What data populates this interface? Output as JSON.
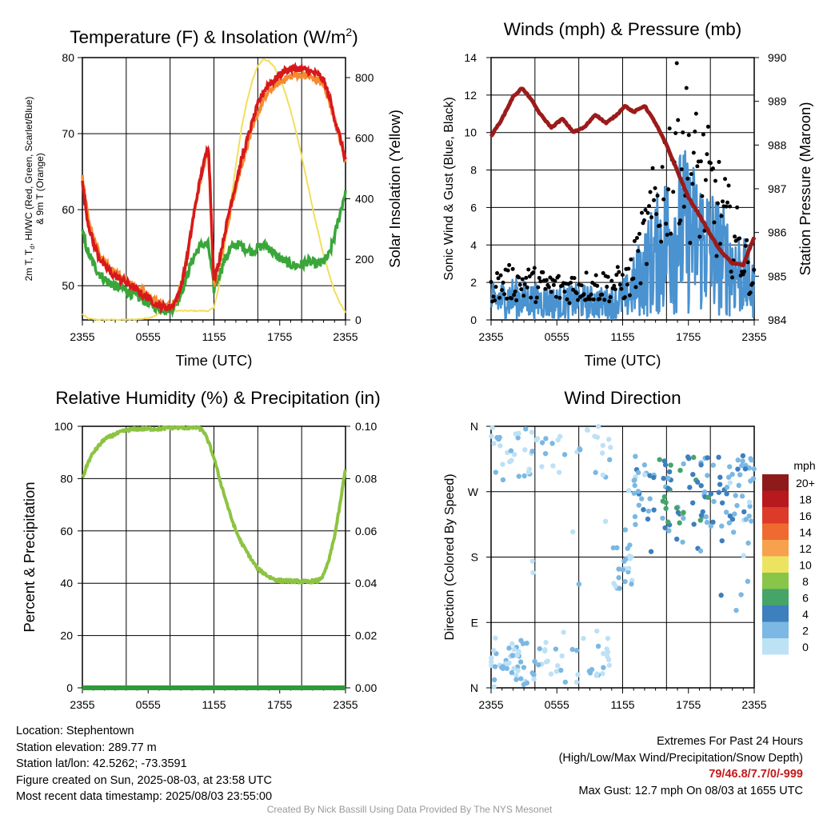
{
  "colors": {
    "temp_2m": "#d7191c",
    "dewpoint": "#3aa63a",
    "heat_index_wc": "#d7191c",
    "temp_9m": "#f58b30",
    "insolation": "#f2de5c",
    "wind": "#4a92d0",
    "gust": "#000000",
    "pressure": "#9b1b1b",
    "rh": "#8cc441",
    "precip": "#2e9a3a"
  },
  "x_ticks": [
    "2355",
    "0555",
    "1155",
    "1755",
    "2355"
  ],
  "chart_data": [
    {
      "type": "line",
      "title": "Temperature (F) & Insolation (W/m",
      "title_sup": "2",
      "title_close": ")",
      "xlabel": "Time (UTC)",
      "ylabel_lines": [
        "2m T, T",
        "d",
        ", HI/WC (Red, Green, Scarlet/Blue)",
        "& 9m T (Orange)"
      ],
      "ylabel2": "Solar Insolation (Yellow)",
      "ylim": [
        45.5,
        80
      ],
      "y_ticks": [
        50,
        60,
        70,
        80
      ],
      "y2lim": [
        0,
        866
      ],
      "y2_ticks": [
        0,
        200,
        400,
        600,
        800
      ],
      "x": [
        0,
        1,
        2,
        3,
        4,
        5,
        6,
        7,
        8,
        9,
        10,
        11,
        12,
        13,
        14,
        15,
        16,
        17,
        18,
        19,
        20,
        21,
        22,
        23,
        24
      ],
      "x_unit": "hours after 2355 UTC",
      "series": [
        {
          "name": "2m T",
          "values": [
            63.5,
            58.5,
            55.8,
            54.0,
            52.8,
            52.0,
            51.3,
            51.0,
            50.6,
            50.1,
            49.6,
            49.1,
            48.6,
            48.1,
            47.6,
            47.3,
            47.1,
            47.3,
            48.3,
            50.5,
            54.0,
            58.5,
            62.5,
            65.8,
            68.5
          ]
        },
        {
          "name": "Td",
          "values": [
            57.0,
            54.5,
            53.0,
            51.8,
            51.0,
            50.5,
            50.0,
            49.8,
            49.5,
            49.1,
            48.7,
            48.3,
            48.0,
            47.6,
            47.2,
            47.0,
            46.9,
            47.0,
            47.8,
            49.5,
            51.5,
            53.5,
            54.8,
            55.5,
            55.3
          ]
        },
        {
          "name": "9m T",
          "values": [
            64.2,
            59.3,
            56.5,
            54.6,
            53.3,
            52.4,
            51.7,
            51.4,
            51.0,
            50.5,
            50.0,
            49.5,
            49.0,
            48.5,
            48.0,
            47.6,
            47.3,
            47.5,
            48.4,
            50.6,
            54.1,
            58.5,
            62.4,
            65.6,
            68.2
          ]
        },
        {
          "name": "Insolation",
          "axis": "y2",
          "values": [
            20,
            5,
            2,
            1,
            1,
            1,
            1,
            1,
            1,
            1,
            2,
            3,
            5,
            8,
            15,
            28,
            60,
            130,
            230,
            340,
            450,
            560,
            650,
            730,
            790
          ]
        }
      ],
      "series_tail": {
        "x": [
          11.5,
          12,
          12.5,
          13,
          13.5,
          14,
          14.5,
          15,
          15.5,
          16,
          16.5,
          17,
          17.5,
          18,
          18.5,
          19,
          19.5,
          20,
          20.5,
          21,
          21.5,
          22,
          22.5,
          23,
          23.5,
          24
        ],
        "temp_2m": [
          47.5,
          50.5,
          53.5,
          57.0,
          60.5,
          63.5,
          66.5,
          69.0,
          71.5,
          73.8,
          75.5,
          76.5,
          77.0,
          77.8,
          78.3,
          78.5,
          78.6,
          78.5,
          78.3,
          78.0,
          77.8,
          77.0,
          75.0,
          72.0,
          69.5,
          66.5
        ],
        "temp_9m": [
          47.6,
          50.0,
          53.0,
          56.5,
          60.0,
          63.0,
          65.8,
          68.3,
          70.6,
          72.6,
          74.3,
          75.5,
          76.2,
          76.8,
          77.2,
          77.5,
          77.7,
          77.7,
          77.5,
          77.3,
          77.0,
          76.3,
          74.5,
          71.8,
          69.2,
          66.5
        ],
        "dewpoint": [
          47.8,
          49.5,
          51.5,
          53.5,
          54.8,
          55.5,
          55.2,
          54.8,
          54.5,
          55.0,
          55.3,
          55.0,
          54.2,
          53.6,
          53.2,
          52.8,
          52.6,
          52.8,
          53.2,
          53.0,
          52.8,
          53.2,
          54.0,
          56.5,
          59.5,
          62.5
        ],
        "insolation": [
          20,
          40,
          120,
          250,
          380,
          510,
          630,
          720,
          790,
          840,
          860,
          855,
          835,
          800,
          750,
          690,
          620,
          540,
          455,
          370,
          290,
          215,
          150,
          95,
          55,
          25
        ]
      }
    },
    {
      "type": "line",
      "title": "Winds (mph) & Pressure (mb)",
      "xlabel": "Time (UTC)",
      "ylabel": "Sonic Wind & Gust (Blue, Black)",
      "ylabel2": "Station Pressure (Maroon)",
      "ylim": [
        0,
        14
      ],
      "y_ticks": [
        0,
        2,
        4,
        6,
        8,
        10,
        12,
        14
      ],
      "y2lim": [
        984,
        990
      ],
      "y2_ticks": [
        984,
        985,
        986,
        987,
        988,
        989,
        990
      ],
      "pressure": {
        "x": [
          0,
          1,
          2,
          2.8,
          3.5,
          4.5,
          5.5,
          6.5,
          7.5,
          8.5,
          9.5,
          10.5,
          11.5,
          12.2,
          13,
          14,
          15,
          16,
          17,
          18,
          19,
          20,
          21,
          22,
          23,
          24
        ],
        "values": [
          988.2,
          988.6,
          989.1,
          989.3,
          989.1,
          988.7,
          988.4,
          988.6,
          988.3,
          988.4,
          988.7,
          988.5,
          988.7,
          988.9,
          988.75,
          988.9,
          988.5,
          988.0,
          987.4,
          986.8,
          986.4,
          985.95,
          985.55,
          985.3,
          985.25,
          985.9
        ]
      },
      "wind_level": {
        "x": [
          0,
          2,
          4,
          6,
          8,
          10,
          11.5,
          12.5,
          13.5,
          14.5,
          15.5,
          16.5,
          17.5,
          18.5,
          19.5,
          20.5,
          21.5,
          22.5,
          23.5,
          24
        ],
        "values": [
          1.0,
          1.2,
          1.0,
          0.9,
          1.0,
          0.9,
          1.0,
          1.3,
          2.2,
          3.0,
          3.8,
          4.6,
          4.8,
          4.4,
          4.0,
          3.6,
          3.0,
          2.6,
          2.0,
          1.4
        ]
      },
      "gust_level": {
        "x": [
          0,
          2,
          4,
          6,
          8,
          10,
          11.5,
          12.5,
          13.5,
          14.5,
          15.5,
          16.5,
          17,
          17.5,
          18.5,
          19.5,
          20.5,
          21.5,
          22.5,
          23.5,
          24
        ],
        "values": [
          1.8,
          2.0,
          1.9,
          1.7,
          1.8,
          1.8,
          1.9,
          2.0,
          3.5,
          5.0,
          6.8,
          8.5,
          10.5,
          9.0,
          7.8,
          7.2,
          6.2,
          5.0,
          4.0,
          2.8,
          1.8
        ]
      }
    },
    {
      "type": "line",
      "title": "Relative Humidity (%) & Precipitation (in)",
      "ylabel": "Percent & Precipitation",
      "ylim": [
        0,
        100
      ],
      "y_ticks": [
        0,
        20,
        40,
        60,
        80,
        100
      ],
      "y2lim": [
        0,
        0.1
      ],
      "y2_ticks": [
        "0.00",
        "0.02",
        "0.04",
        "0.06",
        "0.08",
        "0.10"
      ],
      "series": [
        {
          "name": "RH",
          "x": [
            0,
            0.5,
            1,
            2,
            3,
            4,
            5,
            6,
            7,
            8,
            9,
            10,
            10.5,
            11,
            11.5,
            12,
            12.5,
            13,
            13.5,
            14,
            14.5,
            15,
            15.5,
            16,
            16.5,
            17,
            17.5,
            18,
            18.5,
            19,
            19.5,
            20,
            20.5,
            21,
            21.5,
            22,
            22.5,
            23,
            23.5,
            24
          ],
          "values": [
            80,
            86,
            90,
            95,
            97,
            98.5,
            99,
            99,
            99,
            99.5,
            99.5,
            99.5,
            99.5,
            98.5,
            94,
            88,
            80,
            73,
            66,
            60,
            55.5,
            52,
            48.5,
            45.5,
            44,
            42.5,
            41.5,
            41,
            41,
            40.8,
            40.8,
            40.6,
            40.6,
            40.8,
            41,
            43,
            49,
            58,
            70,
            84
          ]
        },
        {
          "name": "Precipitation",
          "axis": "y2",
          "values": [
            0,
            0
          ]
        }
      ]
    },
    {
      "type": "scatter",
      "title": "Wind Direction",
      "ylabel": "Direction (Colored By Speed)",
      "y_ticks": [
        "N",
        "E",
        "S",
        "W",
        "N"
      ],
      "legend_title": "mph",
      "legend": [
        {
          "label": "20+",
          "color": "#8e1a1a"
        },
        {
          "label": "18",
          "color": "#b8191e"
        },
        {
          "label": "16",
          "color": "#dc3b2a"
        },
        {
          "label": "14",
          "color": "#ef6a30"
        },
        {
          "label": "12",
          "color": "#f7a14d"
        },
        {
          "label": "10",
          "color": "#ece460"
        },
        {
          "label": "8",
          "color": "#88c548"
        },
        {
          "label": "6",
          "color": "#45a468"
        },
        {
          "label": "4",
          "color": "#3e7fbd"
        },
        {
          "label": "2",
          "color": "#7bb8e3"
        },
        {
          "label": "0",
          "color": "#bde1f5"
        }
      ],
      "direction_clusters": [
        {
          "x_range": [
            0,
            4
          ],
          "deg_range": [
            0,
            70
          ],
          "count": 48
        },
        {
          "x_range": [
            0,
            2
          ],
          "deg_range": [
            285,
            360
          ],
          "count": 14
        },
        {
          "x_range": [
            2,
            11
          ],
          "deg_range": [
            290,
            360
          ],
          "count": 42
        },
        {
          "x_range": [
            4,
            11
          ],
          "deg_range": [
            5,
            85
          ],
          "count": 38
        },
        {
          "x_range": [
            11,
            13
          ],
          "deg_range": [
            135,
            200
          ],
          "count": 22
        },
        {
          "x_range": [
            12.5,
            24
          ],
          "deg_range": [
            220,
            320
          ],
          "count": 130
        },
        {
          "x_range": [
            12.5,
            24
          ],
          "deg_range": [
            180,
            225
          ],
          "count": 10
        },
        {
          "x_range": [
            3,
            24
          ],
          "deg_range": [
            100,
            240
          ],
          "count": 12
        }
      ]
    }
  ],
  "info": {
    "location": "Location: Stephentown",
    "elevation": "Station elevation: 289.77 m",
    "latlon": "Station lat/lon: 42.5262; -73.3591",
    "created": "Figure created on Sun, 2025-08-03, at 23:58 UTC",
    "recent": "Most recent data timestamp: 2025/08/03 23:55:00"
  },
  "extremes": {
    "title": "Extremes For Past 24 Hours",
    "subtitle": "(High/Low/Max Wind/Precipitation/Snow Depth)",
    "values": "79/46.8/7.7/0/-999",
    "max_gust": "Max Gust: 12.7 mph On 08/03 at 1655 UTC"
  },
  "credit": "Created By Nick Bassill Using Data Provided By The NYS Mesonet"
}
